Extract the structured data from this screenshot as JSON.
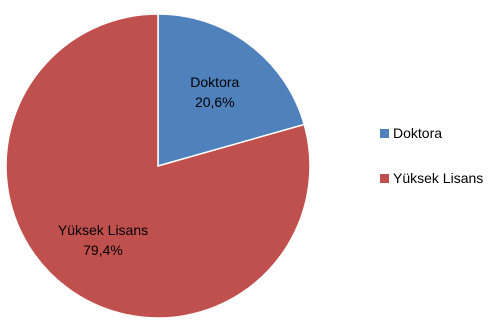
{
  "chart_data": {
    "type": "pie",
    "title": "",
    "slices": [
      {
        "label": "Doktora",
        "value": 20.6,
        "display": "20,6%",
        "color": "#4F81BD"
      },
      {
        "label": "Yüksek Lisans",
        "value": 79.4,
        "display": "79,4%",
        "color": "#C0504D"
      }
    ],
    "legend_position": "right"
  }
}
